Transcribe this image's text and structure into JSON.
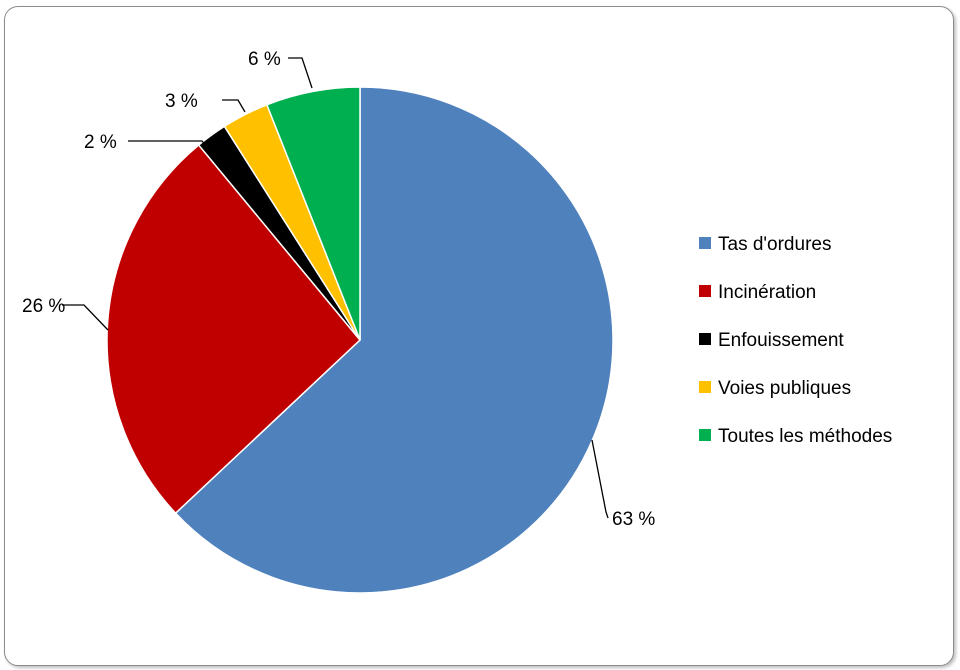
{
  "chart_data": {
    "type": "pie",
    "title": "",
    "start_angle_deg": 0,
    "direction": "clockwise",
    "legend_position": "right",
    "slices": [
      {
        "name": "Tas d'ordures",
        "value": 63,
        "label": "63 %",
        "color": "#4F81BD"
      },
      {
        "name": "Incinération",
        "value": 26,
        "label": "26 %",
        "color": "#C00000"
      },
      {
        "name": "Enfouissement",
        "value": 2,
        "label": "2 %",
        "color": "#000000"
      },
      {
        "name": "Voies publiques",
        "value": 3,
        "label": "3 %",
        "color": "#FFC000"
      },
      {
        "name": "Toutes les méthodes",
        "value": 6,
        "label": "6 %",
        "color": "#00B050"
      }
    ]
  }
}
